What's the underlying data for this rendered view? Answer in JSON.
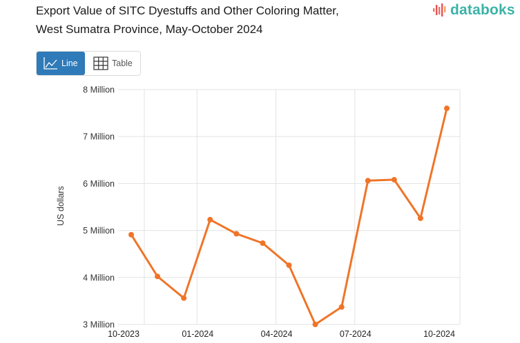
{
  "header": {
    "title_line1": "Export Value of SITC Dyestuffs and Other Coloring Matter,",
    "title_line2": "West Sumatra Province, May-October 2024",
    "logo_text": "databoks"
  },
  "view_toggle": {
    "line_label": "Line",
    "table_label": "Table",
    "active": "Line",
    "active_color": "#2f7ab8"
  },
  "colors": {
    "series": "#f07428",
    "grid": "#e3e3e3",
    "logo": "#3bb3a8"
  },
  "chart_data": {
    "type": "line",
    "title": "Export Value of SITC Dyestuffs and Other Coloring Matter, West Sumatra Province, May-October 2024",
    "xlabel": "",
    "ylabel": "US dollars",
    "ylim": [
      3000000,
      8000000
    ],
    "yticks": [
      3000000,
      4000000,
      5000000,
      6000000,
      7000000,
      8000000
    ],
    "ytick_labels": [
      "3 Million",
      "4 Million",
      "5 Million",
      "6 Million",
      "7 Million",
      "8 Million"
    ],
    "xtick_labels": [
      "10-2023",
      "01-2024",
      "04-2024",
      "07-2024",
      "10-2024"
    ],
    "grid": true,
    "legend": "none",
    "x": [
      "10-2023",
      "11-2023",
      "12-2023",
      "01-2024",
      "02-2024",
      "03-2024",
      "04-2024",
      "05-2024",
      "06-2024",
      "07-2024",
      "08-2024",
      "09-2024",
      "10-2024"
    ],
    "series": [
      {
        "name": "Export Value",
        "values": [
          4910000,
          4020000,
          3560000,
          5230000,
          4930000,
          4730000,
          4260000,
          3000000,
          3370000,
          6060000,
          6080000,
          5260000,
          7600000
        ]
      }
    ]
  }
}
